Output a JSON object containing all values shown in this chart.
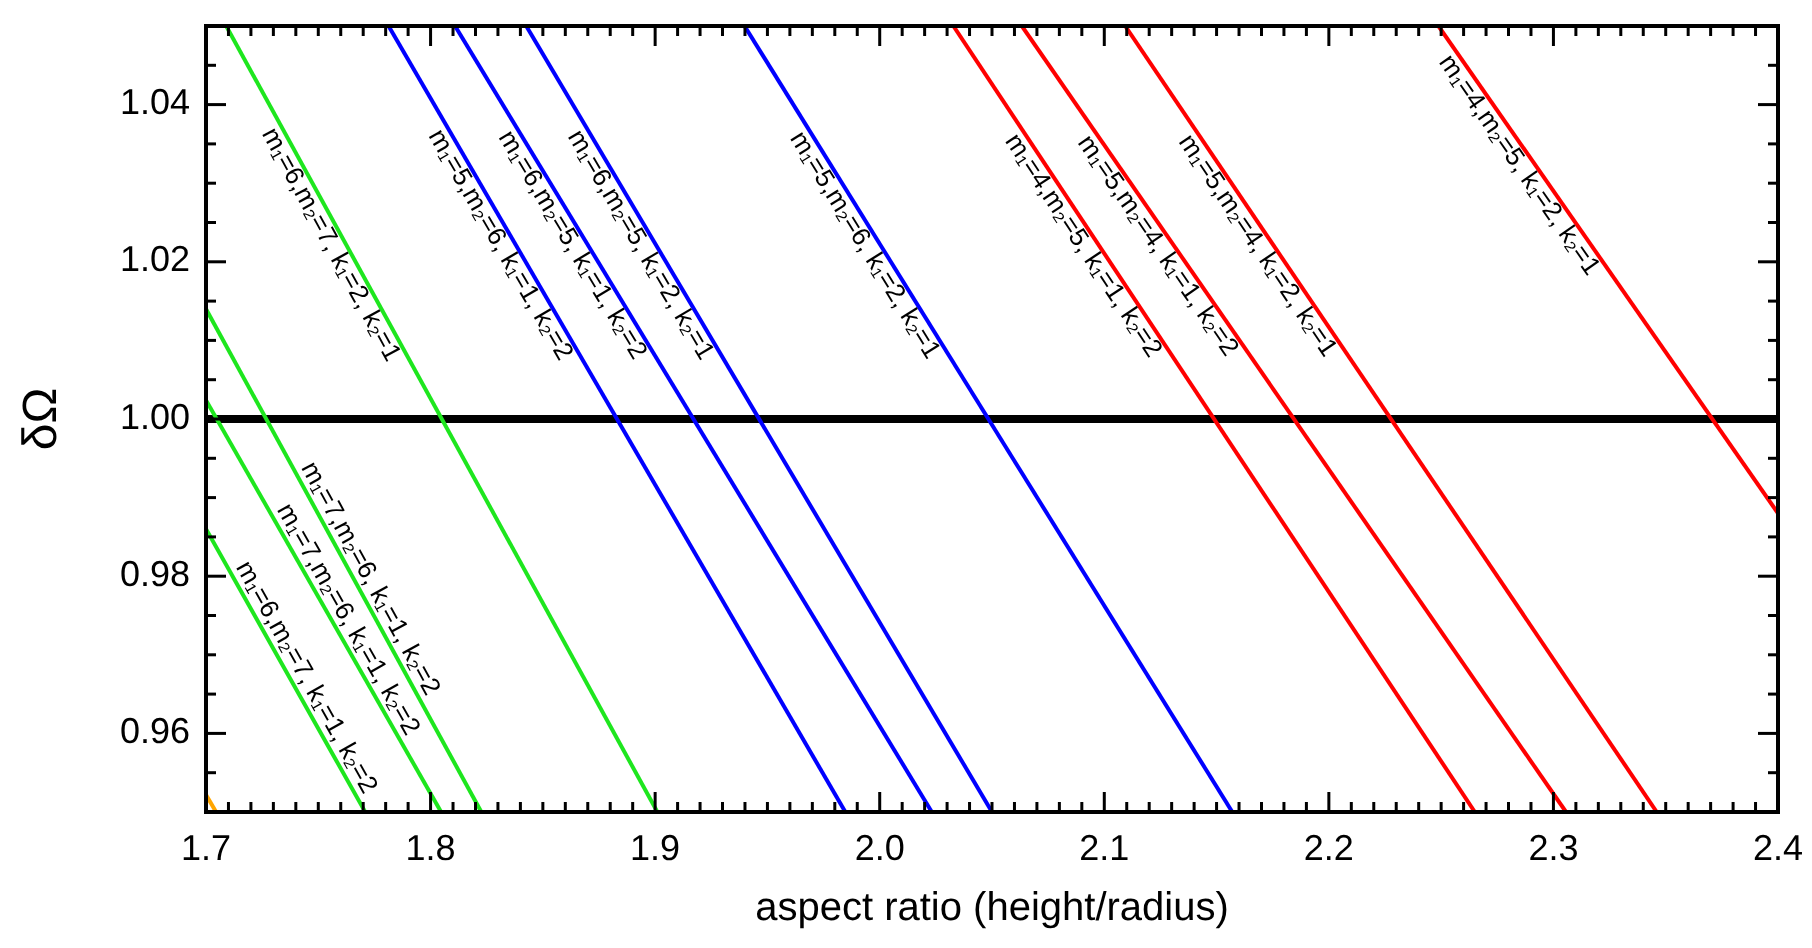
{
  "chart_data": {
    "type": "line",
    "xlabel": "aspect ratio (height/radius)",
    "ylabel": "δΩ",
    "xlim": [
      1.7,
      2.4
    ],
    "ylim": [
      0.95,
      1.05
    ],
    "xticks": [
      1.7,
      {
        "value": 1.71,
        "label": null
      },
      {
        "value": 1.72,
        "label": null
      },
      {
        "value": 1.73,
        "label": null
      },
      {
        "value": 1.74,
        "label": null
      },
      {
        "value": 1.75,
        "label": null
      },
      {
        "value": 1.76,
        "label": null
      },
      {
        "value": 1.77,
        "label": null
      },
      {
        "value": 1.78,
        "label": null
      },
      {
        "value": 1.79,
        "label": null
      },
      1.8,
      {
        "value": 1.81,
        "label": null
      },
      {
        "value": 1.82,
        "label": null
      },
      {
        "value": 1.83,
        "label": null
      },
      {
        "value": 1.84,
        "label": null
      },
      {
        "value": 1.85,
        "label": null
      },
      {
        "value": 1.86,
        "label": null
      },
      {
        "value": 1.87,
        "label": null
      },
      {
        "value": 1.88,
        "label": null
      },
      {
        "value": 1.89,
        "label": null
      },
      1.9,
      {
        "value": 1.91,
        "label": null
      },
      {
        "value": 1.92,
        "label": null
      },
      {
        "value": 1.93,
        "label": null
      },
      {
        "value": 1.94,
        "label": null
      },
      {
        "value": 1.95,
        "label": null
      },
      {
        "value": 1.96,
        "label": null
      },
      {
        "value": 1.97,
        "label": null
      },
      {
        "value": 1.98,
        "label": null
      },
      {
        "value": 1.99,
        "label": null
      },
      {
        "value": 2.0,
        "label": "2.0"
      },
      {
        "value": 2.01,
        "label": null
      },
      {
        "value": 2.02,
        "label": null
      },
      {
        "value": 2.03,
        "label": null
      },
      {
        "value": 2.04,
        "label": null
      },
      {
        "value": 2.05,
        "label": null
      },
      {
        "value": 2.06,
        "label": null
      },
      {
        "value": 2.07,
        "label": null
      },
      {
        "value": 2.08,
        "label": null
      },
      {
        "value": 2.09,
        "label": null
      },
      2.1,
      {
        "value": 2.11,
        "label": null
      },
      {
        "value": 2.12,
        "label": null
      },
      {
        "value": 2.13,
        "label": null
      },
      {
        "value": 2.14,
        "label": null
      },
      {
        "value": 2.15,
        "label": null
      },
      {
        "value": 2.16,
        "label": null
      },
      {
        "value": 2.17,
        "label": null
      },
      {
        "value": 2.18,
        "label": null
      },
      {
        "value": 2.19,
        "label": null
      },
      2.2,
      {
        "value": 2.21,
        "label": null
      },
      {
        "value": 2.22,
        "label": null
      },
      {
        "value": 2.23,
        "label": null
      },
      {
        "value": 2.24,
        "label": null
      },
      {
        "value": 2.25,
        "label": null
      },
      {
        "value": 2.26,
        "label": null
      },
      {
        "value": 2.27,
        "label": null
      },
      {
        "value": 2.28,
        "label": null
      },
      {
        "value": 2.29,
        "label": null
      },
      2.3,
      {
        "value": 2.31,
        "label": null
      },
      {
        "value": 2.32,
        "label": null
      },
      {
        "value": 2.33,
        "label": null
      },
      {
        "value": 2.34,
        "label": null
      },
      {
        "value": 2.35,
        "label": null
      },
      {
        "value": 2.36,
        "label": null
      },
      {
        "value": 2.37,
        "label": null
      },
      {
        "value": 2.38,
        "label": null
      },
      {
        "value": 2.39,
        "label": null
      },
      2.4
    ],
    "yticks": [
      {
        "value": 0.95,
        "label": null
      },
      {
        "value": 0.955,
        "label": null
      },
      0.96,
      {
        "value": 0.965,
        "label": null
      },
      {
        "value": 0.97,
        "label": null
      },
      {
        "value": 0.975,
        "label": null
      },
      0.98,
      {
        "value": 0.985,
        "label": null
      },
      {
        "value": 0.99,
        "label": null
      },
      {
        "value": 0.995,
        "label": null
      },
      {
        "value": 1.0,
        "label": "1.00"
      },
      {
        "value": 1.005,
        "label": null
      },
      {
        "value": 1.01,
        "label": null
      },
      {
        "value": 1.015,
        "label": null
      },
      1.02,
      {
        "value": 1.025,
        "label": null
      },
      {
        "value": 1.03,
        "label": null
      },
      {
        "value": 1.035,
        "label": null
      },
      1.04,
      {
        "value": 1.045,
        "label": null
      },
      {
        "value": 1.05,
        "label": null
      }
    ],
    "grid": false,
    "line_style": "solid",
    "marker": "none",
    "ref_lines": [
      {
        "axis": "y",
        "value": 1.0,
        "color": "#000000"
      }
    ],
    "series": [
      {
        "name": "m₁=6,m₂=7, k₁=2, k₂=1",
        "color": "#1ee61e",
        "x": [
          1.709,
          1.901
        ],
        "values": [
          1.05,
          0.95
        ]
      },
      {
        "name": "m₁=7,m₂=6, k₁=1, k₂=2",
        "color": "#1ee61e",
        "x": [
          1.7,
          1.8226
        ],
        "values": [
          1.014,
          0.95
        ]
      },
      {
        "name": "m₁=7,m₂=6, k₁=1, k₂=2",
        "color": "#1ee61e",
        "x": [
          1.7,
          1.8047
        ],
        "values": [
          1.0024,
          0.95
        ]
      },
      {
        "name": "m₁=6,m₂=7, k₁=1, k₂=2",
        "color": "#1ee61e",
        "x": [
          1.7,
          1.7709
        ],
        "values": [
          0.986,
          0.95
        ]
      },
      {
        "color": "#ffa500",
        "x": [
          1.7,
          1.7045
        ],
        "values": [
          0.9522,
          0.95
        ]
      },
      {
        "name": "m₁=5,m₂=6, k₁=1, k₂=2",
        "color": "#0000ff",
        "x": [
          1.7813,
          1.9847
        ],
        "values": [
          1.05,
          0.95
        ]
      },
      {
        "name": "m₁=6,m₂=5, k₁=1, k₂=2",
        "color": "#0000ff",
        "x": [
          1.8109,
          2.0232
        ],
        "values": [
          1.05,
          0.95
        ]
      },
      {
        "name": "m₁=6,m₂=5, k₁=2, k₂=1",
        "color": "#0000ff",
        "x": [
          1.8426,
          2.05
        ],
        "values": [
          1.05,
          0.95
        ]
      },
      {
        "name": "m₁=5,m₂=6, k₁=2, k₂=1",
        "color": "#0000ff",
        "x": [
          1.9398,
          2.157
        ],
        "values": [
          1.05,
          0.95
        ]
      },
      {
        "name": "m₁=4,m₂=5, k₁=1, k₂=2",
        "color": "#ff0000",
        "x": [
          2.0328,
          2.265
        ],
        "values": [
          1.05,
          0.95
        ]
      },
      {
        "name": "m₁=5,m₂=4, k₁=1, k₂=2",
        "color": "#ff0000",
        "x": [
          2.0633,
          2.3056
        ],
        "values": [
          1.05,
          0.95
        ]
      },
      {
        "name": "m₁=5,m₂=4, k₁=2, k₂=1",
        "color": "#ff0000",
        "x": [
          2.1093,
          2.346
        ],
        "values": [
          1.05,
          0.95
        ]
      },
      {
        "name": "m₁=4,m₂=5, k₁=2, k₂=1",
        "color": "#ff0000",
        "x": [
          2.2488,
          2.4
        ],
        "values": [
          1.05,
          0.988
        ]
      }
    ]
  }
}
